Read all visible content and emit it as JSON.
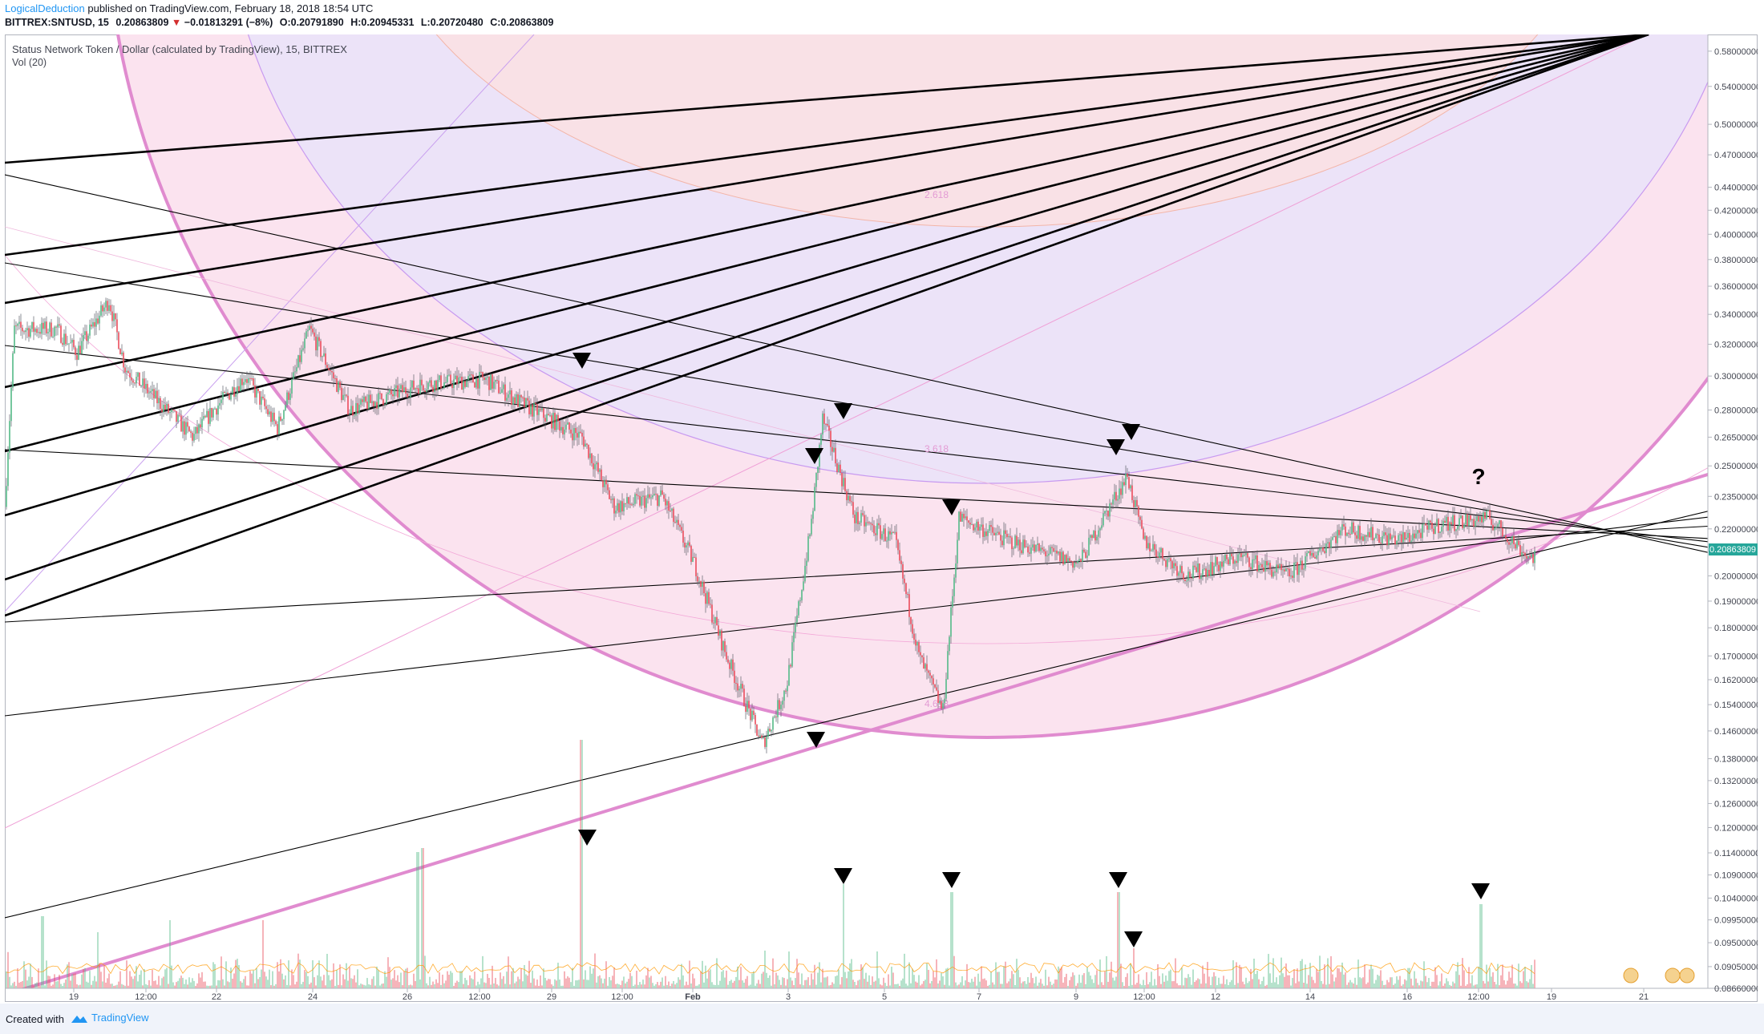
{
  "header": {
    "author": "LogicalDeduction",
    "published": "published on TradingView.com, February 18, 2018 18:54 UTC",
    "symbol": "BITTREX:SNTUSD, 15",
    "last": "0.20863809",
    "change_arrow": "▼",
    "change": "−0.01813291 (−8%)",
    "open": "O:0.20791890",
    "high": "H:0.20945331",
    "low": "L:0.20720480",
    "close": "C:0.20863809"
  },
  "legend": {
    "title": "Status Network Token / Dollar (calculated by TradingView), 15, BITTREX",
    "volume": "Vol (20)"
  },
  "footer": {
    "created_with": "Created with",
    "brand": "TradingView"
  },
  "chart_data": {
    "type": "candlestick",
    "symbol": "BITTREX:SNTUSD",
    "interval": "15",
    "yscale": "log",
    "ylim": [
      0.0866,
      0.6
    ],
    "y_ticks": [
      "0.58000000",
      "0.54000000",
      "0.50000000",
      "0.47000000",
      "0.44000000",
      "0.42000000",
      "0.40000000",
      "0.38000000",
      "0.36000000",
      "0.34000000",
      "0.32000000",
      "0.30000000",
      "0.28000000",
      "0.26500000",
      "0.25000000",
      "0.23500000",
      "0.22000000",
      "0.20000000",
      "0.19000000",
      "0.18000000",
      "0.17000000",
      "0.16200000",
      "0.15400000",
      "0.14600000",
      "0.13800000",
      "0.13200000",
      "0.12600000",
      "0.12000000",
      "0.11400000",
      "0.10900000",
      "0.10400000",
      "0.09950000",
      "0.09500000",
      "0.09050000",
      "0.08660000"
    ],
    "x_ticks": [
      "19",
      "12:00",
      "22",
      "24",
      "26",
      "12:00",
      "29",
      "12:00",
      "Feb",
      "3",
      "5",
      "7",
      "9",
      "12:00",
      "12",
      "14",
      "16",
      "12:00",
      "19",
      "21"
    ],
    "current_price_label": "0.20863809",
    "fib_levels": [
      "2.618",
      "3.618",
      "4.618"
    ],
    "annotation": "?",
    "price_path": [
      [
        "Jan 18",
        0.23
      ],
      [
        "Jan 18",
        0.33
      ],
      [
        "19",
        0.33
      ],
      [
        "19",
        0.315
      ],
      [
        "12:00",
        0.35
      ],
      [
        "12:00",
        0.305
      ],
      [
        "22",
        0.265
      ],
      [
        "22",
        0.28
      ],
      [
        "24",
        0.3
      ],
      [
        "24",
        0.27
      ],
      [
        "26",
        0.33
      ],
      [
        "26",
        0.28
      ],
      [
        "12:00",
        0.295
      ],
      [
        "29",
        0.298
      ],
      [
        "29",
        0.285
      ],
      [
        "12:00",
        0.265
      ],
      [
        "12:00",
        0.23
      ],
      [
        "Feb",
        0.235
      ],
      [
        "Feb",
        0.205
      ],
      [
        "Feb",
        0.17
      ],
      [
        "Feb",
        0.142
      ],
      [
        "3",
        0.16
      ],
      [
        "3",
        0.22
      ],
      [
        "3",
        0.275
      ],
      [
        "3",
        0.225
      ],
      [
        "5",
        0.215
      ],
      [
        "5",
        0.17
      ],
      [
        "5",
        0.152
      ],
      [
        "7",
        0.225
      ],
      [
        "7",
        0.215
      ],
      [
        "9",
        0.205
      ],
      [
        "9",
        0.225
      ],
      [
        "12:00",
        0.245
      ],
      [
        "12:00",
        0.215
      ],
      [
        "12",
        0.2
      ],
      [
        "12",
        0.208
      ],
      [
        "14",
        0.2
      ],
      [
        "14",
        0.22
      ],
      [
        "16",
        0.215
      ],
      [
        "16",
        0.222
      ],
      [
        "12:00",
        0.225
      ],
      [
        "12:00",
        0.208
      ]
    ],
    "volume_spike_markers": 8,
    "price_markers": 7
  }
}
